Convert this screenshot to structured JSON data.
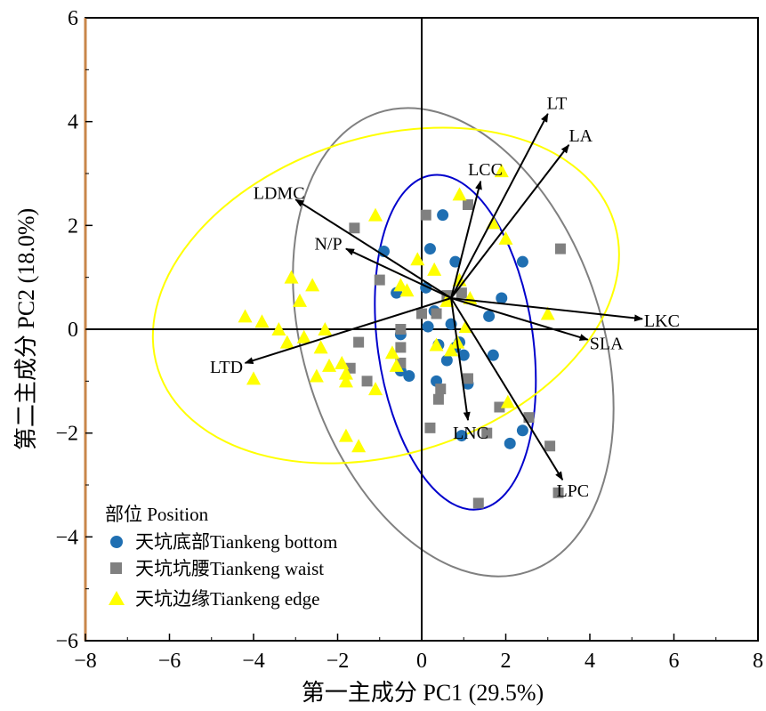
{
  "chart_data": {
    "type": "scatter",
    "title": "",
    "xlabel": "第一主成分 PC1 (29.5%)",
    "ylabel": "第二主成分 PC2 (18.0%)",
    "xlim": [
      -8,
      8
    ],
    "ylim": [
      -6,
      6
    ],
    "xticks": [
      "−8",
      "−6",
      "−4",
      "−2",
      "0",
      "2",
      "4",
      "6",
      "8"
    ],
    "yticks": [
      "6",
      "4",
      "2",
      "0",
      "−2",
      "−4",
      "−6"
    ],
    "xtick_values": [
      -8,
      -6,
      -4,
      -2,
      0,
      2,
      4,
      6,
      8
    ],
    "ytick_values": [
      6,
      4,
      2,
      0,
      -2,
      -4,
      -6
    ],
    "grid": false,
    "legend": {
      "title": "部位 Position",
      "placement": "bottom-left",
      "entries": [
        "天坑底部Tiankeng bottom",
        "天坑坑腰Tiankeng waist",
        "天坑边缘Tiankeng edge"
      ]
    },
    "colors": {
      "bottom": "#1f6fb2",
      "waist": "#808080",
      "edge": "#ffff00",
      "ellipse_bottom": "#0000cc",
      "ellipse_waist": "#808080",
      "ellipse_edge": "#ffff00",
      "axis_left_spine": "#c8864a"
    },
    "series": [
      {
        "name": "天坑底部Tiankeng bottom",
        "marker": "circle",
        "x": [
          0.5,
          0.2,
          -0.9,
          0.8,
          2.4,
          0.1,
          1.9,
          0.3,
          1.6,
          -0.6,
          0.15,
          0.7,
          0.9,
          0.8,
          -0.5,
          0.4,
          1.0,
          -0.5,
          1.7,
          0.6,
          -0.3,
          1.1,
          0.35,
          0.95,
          2.4,
          2.1
        ],
        "y": [
          2.2,
          1.55,
          1.5,
          1.3,
          1.3,
          0.8,
          0.6,
          0.35,
          0.25,
          0.7,
          0.05,
          0.1,
          -0.25,
          -0.35,
          -0.1,
          -0.3,
          -0.5,
          -0.8,
          -0.5,
          -0.6,
          -0.9,
          -1.05,
          -1.0,
          -2.05,
          -1.95,
          -2.2
        ]
      },
      {
        "name": "天坑坑腰Tiankeng waist",
        "marker": "square",
        "x": [
          0.1,
          1.1,
          -1.6,
          3.3,
          -1.0,
          0.95,
          0.6,
          0.35,
          0.0,
          -0.5,
          -0.5,
          -1.5,
          -0.5,
          -1.7,
          -1.3,
          1.1,
          0.45,
          0.4,
          0.2,
          1.55,
          1.85,
          2.55,
          3.05,
          3.25,
          1.35
        ],
        "y": [
          2.2,
          2.4,
          1.95,
          1.55,
          0.95,
          0.7,
          0.65,
          0.3,
          0.3,
          0.0,
          -0.35,
          -0.25,
          -0.65,
          -0.75,
          -1.0,
          -0.95,
          -1.15,
          -1.35,
          -1.9,
          -2.0,
          -1.5,
          -1.7,
          -2.25,
          -3.15,
          -3.35
        ]
      },
      {
        "name": "天坑边缘Tiankeng edge",
        "marker": "triangle",
        "x": [
          1.9,
          0.9,
          2.0,
          1.7,
          -1.1,
          -3.1,
          -2.6,
          -2.9,
          -0.5,
          -0.35,
          -0.1,
          0.3,
          0.9,
          1.15,
          -4.2,
          -3.8,
          -3.4,
          -2.8,
          -2.3,
          -3.2,
          -2.4,
          -2.2,
          -1.9,
          -1.8,
          -0.7,
          -0.6,
          -2.5,
          -1.8,
          -1.1,
          -4.0,
          -1.8,
          -1.5,
          2.05,
          3.0,
          0.35,
          0.85,
          0.7,
          0.6,
          1.05
        ],
        "y": [
          3.05,
          2.6,
          1.75,
          2.05,
          2.2,
          1.0,
          0.85,
          0.55,
          0.85,
          0.75,
          1.35,
          1.15,
          0.95,
          0.6,
          0.25,
          0.15,
          0.0,
          -0.15,
          0.0,
          -0.25,
          -0.35,
          -0.7,
          -0.65,
          -1.0,
          -0.45,
          -0.7,
          -0.9,
          -0.85,
          -1.15,
          -0.95,
          -2.05,
          -2.25,
          -1.4,
          0.3,
          -0.3,
          -0.25,
          -0.4,
          0.55,
          0.05
        ]
      }
    ],
    "ellipses": [
      {
        "group": "天坑底部Tiankeng bottom",
        "cx": 0.8,
        "cy": -0.25,
        "rx": 1.85,
        "ry": 3.25,
        "angle_deg": 8
      },
      {
        "group": "天坑坑腰Tiankeng waist",
        "cx": 0.75,
        "cy": -0.25,
        "rx": 3.55,
        "ry": 4.65,
        "angle_deg": 18
      },
      {
        "group": "天坑边缘Tiankeng edge",
        "cx": -0.85,
        "cy": 0.65,
        "rx": 5.7,
        "ry": 3.05,
        "angle_deg": 18
      }
    ],
    "vectors_origin": [
      0.7,
      0.6
    ],
    "vectors": [
      {
        "label": "LT",
        "x": 3.0,
        "y": 4.15
      },
      {
        "label": "LA",
        "x": 3.5,
        "y": 3.55
      },
      {
        "label": "LCC",
        "x": 1.4,
        "y": 2.85
      },
      {
        "label": "LDMC",
        "x": -3.0,
        "y": 2.5
      },
      {
        "label": "N/P",
        "x": -1.8,
        "y": 1.55
      },
      {
        "label": "LKC",
        "x": 5.25,
        "y": 0.2
      },
      {
        "label": "SLA",
        "x": 3.95,
        "y": -0.2
      },
      {
        "label": "LTD",
        "x": -4.2,
        "y": -0.65
      },
      {
        "label": "LNC",
        "x": 1.1,
        "y": -1.75
      },
      {
        "label": "LPC",
        "x": 3.35,
        "y": -2.9
      }
    ]
  }
}
